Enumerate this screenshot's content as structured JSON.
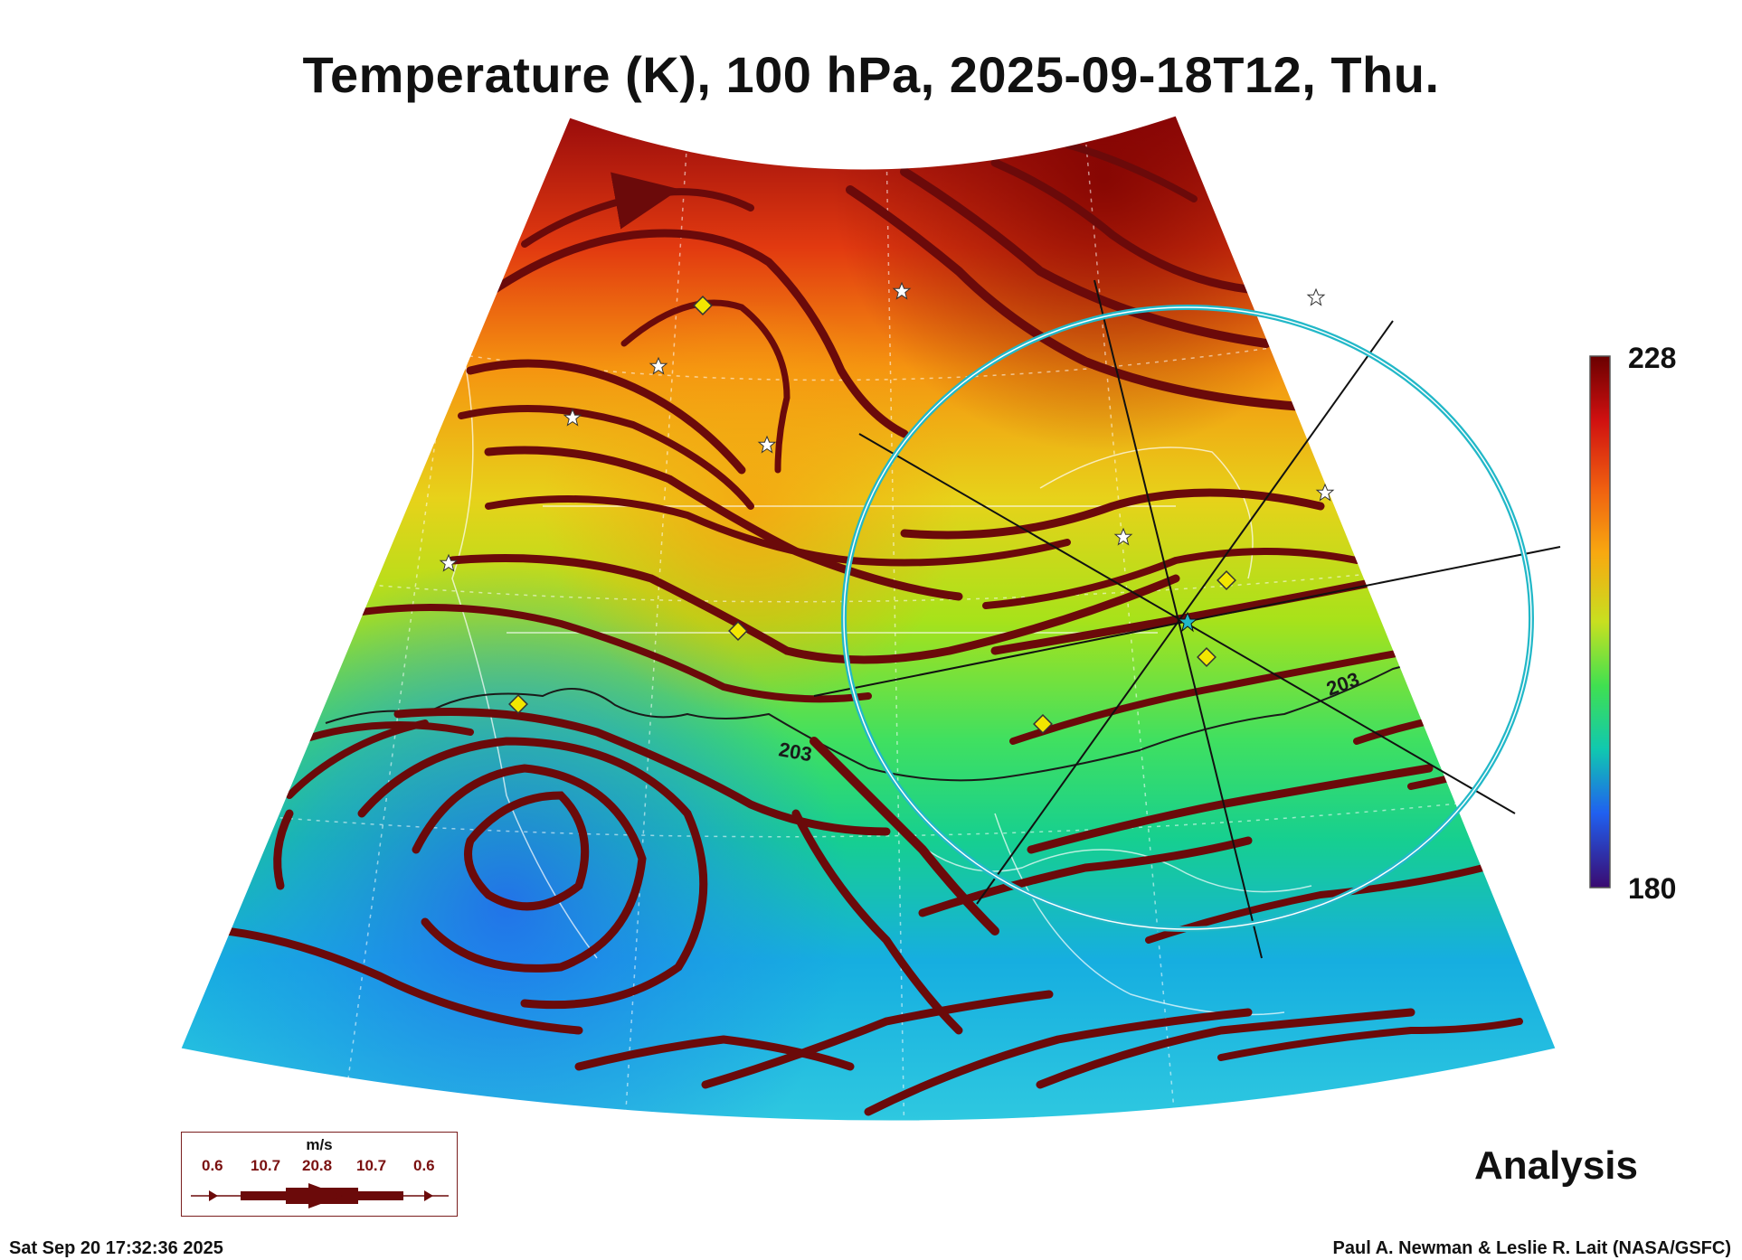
{
  "title": "Temperature (K), 100 hPa, 2025-09-18T12, Thu.",
  "colorbar": {
    "max": "228",
    "min": "180"
  },
  "contour_labels": [
    "203",
    "203"
  ],
  "legend": {
    "unit": "m/s",
    "values": [
      "0.6",
      "10.7",
      "20.8",
      "10.7",
      "0.6"
    ]
  },
  "analysis_label": "Analysis",
  "timestamp": "Sat Sep 20 17:32:36 2025",
  "credit": "Paul A. Newman & Leslie R. Lait (NASA/GSFC)",
  "colors": {
    "streamline": "#6b0a0a",
    "ring": "#22b8c8",
    "marker": "#f2e600"
  }
}
